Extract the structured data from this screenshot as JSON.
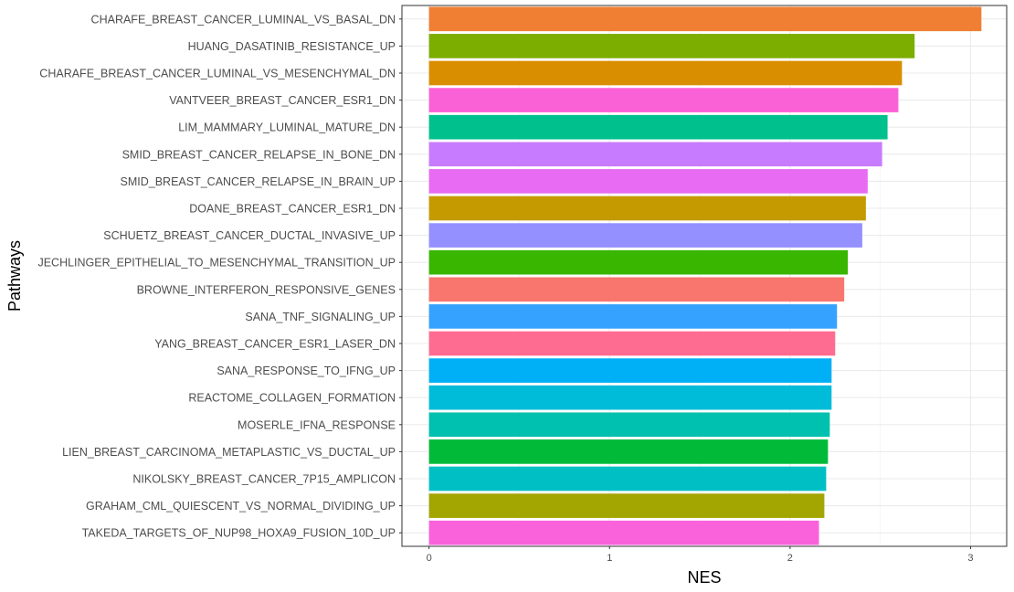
{
  "chart_data": {
    "type": "bar",
    "orientation": "horizontal",
    "title": "",
    "xlabel": "NES",
    "ylabel": "Pathways",
    "xlim": [
      -0.15,
      3.2
    ],
    "xticks": [
      0,
      1,
      2,
      3
    ],
    "grid": true,
    "legend": "none",
    "categories": [
      "CHARAFE_BREAST_CANCER_LUMINAL_VS_BASAL_DN",
      "HUANG_DASATINIB_RESISTANCE_UP",
      "CHARAFE_BREAST_CANCER_LUMINAL_VS_MESENCHYMAL_DN",
      "VANTVEER_BREAST_CANCER_ESR1_DN",
      "LIM_MAMMARY_LUMINAL_MATURE_DN",
      "SMID_BREAST_CANCER_RELAPSE_IN_BONE_DN",
      "SMID_BREAST_CANCER_RELAPSE_IN_BRAIN_UP",
      "DOANE_BREAST_CANCER_ESR1_DN",
      "SCHUETZ_BREAST_CANCER_DUCTAL_INVASIVE_UP",
      "JECHLINGER_EPITHELIAL_TO_MESENCHYMAL_TRANSITION_UP",
      "BROWNE_INTERFERON_RESPONSIVE_GENES",
      "SANA_TNF_SIGNALING_UP",
      "YANG_BREAST_CANCER_ESR1_LASER_DN",
      "SANA_RESPONSE_TO_IFNG_UP",
      "REACTOME_COLLAGEN_FORMATION",
      "MOSERLE_IFNA_RESPONSE",
      "LIEN_BREAST_CARCINOMA_METAPLASTIC_VS_DUCTAL_UP",
      "NIKOLSKY_BREAST_CANCER_7P15_AMPLICON",
      "GRAHAM_CML_QUIESCENT_VS_NORMAL_DIVIDING_UP",
      "TAKEDA_TARGETS_OF_NUP98_HOXA9_FUSION_10D_UP"
    ],
    "values": [
      3.06,
      2.69,
      2.62,
      2.6,
      2.54,
      2.51,
      2.43,
      2.42,
      2.4,
      2.32,
      2.3,
      2.26,
      2.25,
      2.23,
      2.23,
      2.22,
      2.21,
      2.2,
      2.19,
      2.16
    ],
    "colors": [
      "#F07F34",
      "#7CAE00",
      "#D98E00",
      "#FB61D7",
      "#00C08D",
      "#C77CFF",
      "#E76BF3",
      "#C49A00",
      "#9590FF",
      "#39B600",
      "#F8766D",
      "#35A2FF",
      "#FF6C91",
      "#00B0F6",
      "#00BCD8",
      "#00C0AF",
      "#00BA38",
      "#00BFC4",
      "#A3A500",
      "#FA62DB"
    ]
  }
}
